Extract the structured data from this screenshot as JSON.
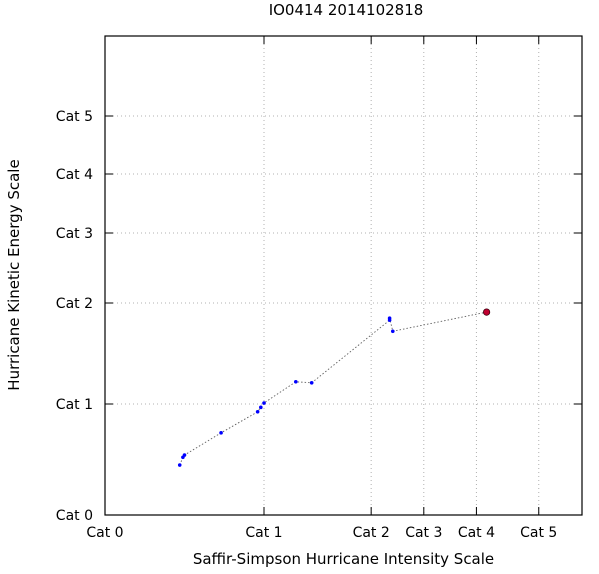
{
  "chart_data": {
    "type": "line",
    "title": "IO0414 2014102818",
    "xlabel": "Saffir-Simpson Hurricane Intensity Scale",
    "ylabel": "Hurricane Kinetic Energy Scale",
    "x_ticks": [
      {
        "label": "Cat 0",
        "value": 0
      },
      {
        "label": "Cat 1",
        "value": 1
      },
      {
        "label": "Cat 2",
        "value": 1.674
      },
      {
        "label": "Cat 3",
        "value": 2.005
      },
      {
        "label": "Cat 4",
        "value": 2.336
      },
      {
        "label": "Cat 5",
        "value": 2.728
      }
    ],
    "y_ticks": [
      {
        "label": "Cat 0",
        "value": 0
      },
      {
        "label": "Cat 1",
        "value": 1
      },
      {
        "label": "Cat 2",
        "value": 2
      },
      {
        "label": "Cat 3",
        "value": 3
      },
      {
        "label": "Cat 4",
        "value": 4
      },
      {
        "label": "Cat 5",
        "value": 5
      }
    ],
    "xlim": [
      0,
      3.0
    ],
    "ylim": [
      0,
      6.4
    ],
    "y_scale": "log-like (category spacing compresses upward)",
    "grid": true,
    "series": [
      {
        "color": "#0000ff",
        "line_style": "dotted",
        "x": [
          0.47,
          0.49,
          0.5,
          0.73,
          0.96,
          0.98,
          1.0,
          1.2,
          1.3,
          1.79,
          1.79,
          1.81,
          2.4
        ],
        "y": [
          0.45,
          0.52,
          0.54,
          0.74,
          0.93,
          0.97,
          1.01,
          1.22,
          1.21,
          1.83,
          1.85,
          1.72,
          1.91
        ]
      }
    ],
    "last_point_color": "#c00030"
  }
}
